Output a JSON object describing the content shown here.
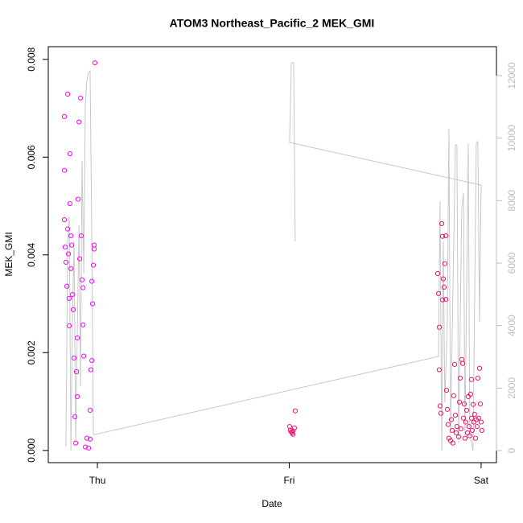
{
  "chart_data": {
    "type": "scatter",
    "title": "ATOM3 Northeast_Pacific_2 MEK_GMI",
    "x_label": "Date",
    "y_label": "MEK_GMI",
    "xlim": [
      -0.256,
      2.08
    ],
    "xticks": [
      {
        "value": 0,
        "label": "Thu"
      },
      {
        "value": 1,
        "label": "Fri"
      },
      {
        "value": 2,
        "label": "Sat"
      }
    ],
    "ylim": [
      -0.00025,
      0.00826
    ],
    "yticks": [
      {
        "value": 0,
        "label": "0.000"
      },
      0.002,
      0.004,
      0.006,
      0.008
    ],
    "y2lim": [
      -386,
      12927
    ],
    "y2ticks": [
      0,
      2000,
      4000,
      6000,
      8000,
      10000,
      12000
    ],
    "y2_color": "#bebebe",
    "series": [
      {
        "color": "#ff00ff",
        "x": [
          -0.172,
          -0.172,
          -0.172,
          -0.168,
          -0.164,
          -0.159,
          -0.155,
          -0.155,
          -0.151,
          -0.147,
          -0.147,
          -0.143,
          -0.143,
          -0.138,
          -0.138,
          -0.134,
          -0.13,
          -0.126,
          -0.122,
          -0.117,
          -0.113,
          -0.109,
          -0.105,
          -0.105,
          -0.101,
          -0.096,
          -0.092,
          -0.088,
          -0.084,
          -0.08,
          -0.075,
          -0.075,
          -0.071,
          -0.063,
          -0.055,
          -0.046,
          -0.038,
          -0.034,
          -0.029,
          -0.029,
          -0.025,
          -0.021,
          -0.017,
          -0.017,
          -0.013,
          -0.038
        ],
        "values": [
          0.00683,
          0.00573,
          0.00472,
          0.00416,
          0.00385,
          0.00336,
          0.00729,
          0.00453,
          0.00402,
          0.00311,
          0.00255,
          0.00607,
          0.00505,
          0.00439,
          0.00372,
          0.0042,
          0.00319,
          0.00288,
          0.00189,
          0.00069,
          0.00015,
          0.00161,
          0.0023,
          0.0011,
          0.00514,
          0.00672,
          0.00392,
          0.00721,
          0.00439,
          0.00349,
          0.00333,
          0.00257,
          0.00193,
          7e-05,
          0.00025,
          5e-05,
          0.00082,
          0.00165,
          0.00184,
          0.00346,
          0.003,
          0.00379,
          0.0042,
          0.00412,
          0.00793,
          0.00023
        ]
      },
      {
        "color": "#f0166e",
        "x": [
          1.002,
          1.006,
          1.011,
          1.015,
          1.019,
          1.027,
          1.031,
          1.019,
          1.774,
          1.778,
          1.782,
          1.782,
          1.786,
          1.79,
          1.795,
          1.799,
          1.799,
          1.803,
          1.807,
          1.811,
          1.816,
          1.816,
          1.82,
          1.824,
          1.828,
          1.832,
          1.841,
          1.845,
          1.849,
          1.853,
          1.857,
          1.862,
          1.866,
          1.87,
          1.874,
          1.883,
          1.887,
          1.891,
          1.895,
          1.899,
          1.904,
          1.908,
          1.912,
          1.916,
          1.92,
          1.925,
          1.929,
          1.933,
          1.937,
          1.941,
          1.945,
          1.95,
          1.95,
          1.954,
          1.958,
          1.962,
          1.966,
          1.971,
          1.975,
          1.979,
          1.983,
          1.987,
          1.992,
          1.996,
          2.0,
          2.004
        ],
        "values": [
          0.00049,
          0.00041,
          0.00038,
          0.00036,
          0.0004,
          0.00046,
          0.00081,
          0.00033,
          0.00362,
          0.00321,
          0.00252,
          0.00165,
          0.00091,
          0.00076,
          0.00464,
          0.00438,
          0.00308,
          0.00351,
          0.00334,
          0.00382,
          0.00439,
          0.00309,
          0.00123,
          0.00084,
          0.00053,
          0.00025,
          0.0002,
          0.00063,
          0.00041,
          0.00015,
          0.00112,
          0.00176,
          0.00072,
          0.00036,
          0.00049,
          0.00028,
          0.00099,
          0.00148,
          0.00044,
          0.00186,
          0.00178,
          0.00066,
          0.00095,
          0.00025,
          0.00058,
          0.00082,
          0.00036,
          0.0011,
          0.00049,
          0.0003,
          0.00115,
          0.00145,
          0.00066,
          0.00041,
          0.00094,
          0.00058,
          0.00074,
          0.00025,
          0.00063,
          0.00049,
          0.00148,
          0.00066,
          0.00168,
          0.00095,
          0.00058,
          0.00041
        ]
      },
      {
        "color": "#c8c8c8",
        "axis": "y2",
        "line": true,
        "x": [
          -0.164,
          -0.155,
          -0.147,
          -0.138,
          -0.13,
          -0.122,
          -0.113,
          -0.105,
          -0.096,
          -0.088,
          -0.08,
          -0.071,
          -0.063,
          -0.055,
          -0.046,
          -0.038,
          -0.029,
          -0.021,
          -0.013,
          1.778,
          1.786,
          1.795,
          1.803,
          1.811,
          1.824,
          1.832,
          1.841,
          1.849,
          1.866,
          1.874,
          1.883,
          1.899,
          1.908,
          1.916,
          1.933,
          1.941,
          1.958,
          1.975,
          1.983,
          1.992,
          2.0,
          1.002,
          1.011,
          1.023,
          1.031
        ],
        "values": [
          129,
          6695,
          7468,
          0,
          4120,
          6695,
          258,
          3605,
          7210,
          2060,
          9270,
          5665,
          11073,
          11845,
          12103,
          12154,
          6695,
          515,
          515,
          3013,
          7983,
          0,
          6695,
          1545,
          4120,
          10300,
          515,
          3605,
          9785,
          9785,
          258,
          7725,
          8240,
          515,
          9837,
          515,
          0,
          9837,
          9888,
          4120,
          8498,
          9862,
          12412,
          12412,
          6695
        ]
      }
    ]
  }
}
